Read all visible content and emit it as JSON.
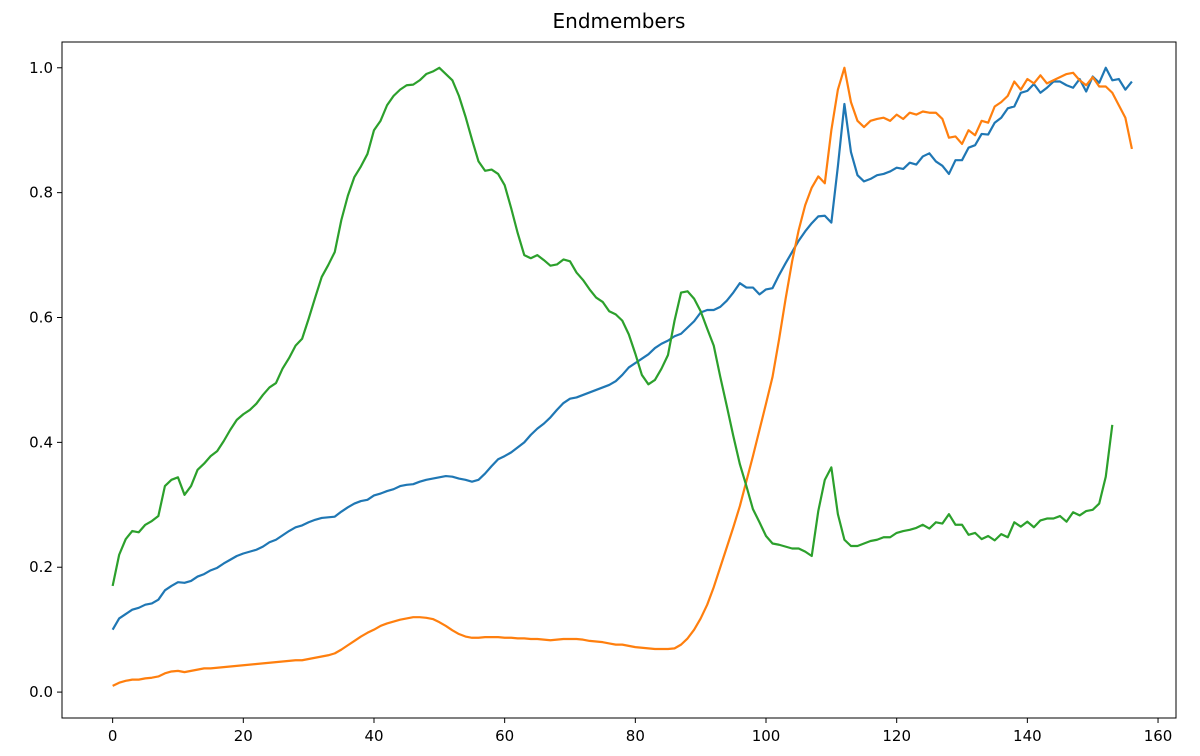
{
  "chart_data": {
    "type": "line",
    "title": "Endmembers",
    "xlabel": "",
    "ylabel": "",
    "xlim": [
      -7.75,
      162.75
    ],
    "ylim": [
      -0.0415,
      1.0413
    ],
    "xticks": [
      0,
      20,
      40,
      60,
      80,
      100,
      120,
      140,
      160
    ],
    "yticks": [
      0.0,
      0.2,
      0.4,
      0.6,
      0.8,
      1.0
    ],
    "xtick_labels": [
      "0",
      "20",
      "40",
      "60",
      "80",
      "100",
      "120",
      "140",
      "160"
    ],
    "ytick_labels": [
      "0.0",
      "0.2",
      "0.4",
      "0.6",
      "0.8",
      "1.0"
    ],
    "grid": false,
    "legend": "none",
    "x_start": 0,
    "x_step": 1,
    "series": [
      {
        "color": "#1f77b4",
        "values": [
          0.1,
          0.118,
          0.125,
          0.132,
          0.135,
          0.14,
          0.142,
          0.148,
          0.163,
          0.17,
          0.176,
          0.175,
          0.178,
          0.185,
          0.189,
          0.195,
          0.199,
          0.206,
          0.212,
          0.218,
          0.222,
          0.225,
          0.228,
          0.233,
          0.24,
          0.244,
          0.251,
          0.258,
          0.264,
          0.267,
          0.272,
          0.276,
          0.279,
          0.28,
          0.281,
          0.289,
          0.296,
          0.302,
          0.306,
          0.308,
          0.315,
          0.318,
          0.322,
          0.325,
          0.33,
          0.332,
          0.333,
          0.337,
          0.34,
          0.342,
          0.344,
          0.346,
          0.345,
          0.342,
          0.34,
          0.337,
          0.34,
          0.35,
          0.362,
          0.373,
          0.378,
          0.384,
          0.392,
          0.4,
          0.412,
          0.422,
          0.43,
          0.44,
          0.452,
          0.463,
          0.47,
          0.472,
          0.476,
          0.48,
          0.484,
          0.488,
          0.492,
          0.498,
          0.508,
          0.52,
          0.527,
          0.534,
          0.541,
          0.551,
          0.558,
          0.563,
          0.57,
          0.574,
          0.584,
          0.594,
          0.608,
          0.612,
          0.612,
          0.617,
          0.627,
          0.64,
          0.655,
          0.648,
          0.648,
          0.637,
          0.645,
          0.647,
          0.668,
          0.687,
          0.705,
          0.723,
          0.738,
          0.751,
          0.762,
          0.763,
          0.752,
          0.842,
          0.942,
          0.865,
          0.828,
          0.818,
          0.822,
          0.828,
          0.83,
          0.834,
          0.84,
          0.838,
          0.848,
          0.845,
          0.858,
          0.863,
          0.85,
          0.843,
          0.83,
          0.852,
          0.852,
          0.872,
          0.876,
          0.894,
          0.893,
          0.912,
          0.92,
          0.935,
          0.938,
          0.96,
          0.963,
          0.974,
          0.96,
          0.968,
          0.978,
          0.978,
          0.972,
          0.968,
          0.982,
          0.962,
          0.986,
          0.976,
          1.0,
          0.98,
          0.982,
          0.965,
          0.978
        ]
      },
      {
        "color": "#ff7f0e",
        "values": [
          0.01,
          0.015,
          0.018,
          0.02,
          0.02,
          0.022,
          0.023,
          0.025,
          0.03,
          0.033,
          0.034,
          0.032,
          0.034,
          0.036,
          0.038,
          0.038,
          0.039,
          0.04,
          0.041,
          0.042,
          0.043,
          0.044,
          0.045,
          0.046,
          0.047,
          0.048,
          0.049,
          0.05,
          0.051,
          0.051,
          0.053,
          0.055,
          0.057,
          0.059,
          0.062,
          0.068,
          0.075,
          0.082,
          0.089,
          0.095,
          0.1,
          0.106,
          0.11,
          0.113,
          0.116,
          0.118,
          0.12,
          0.12,
          0.119,
          0.117,
          0.112,
          0.106,
          0.099,
          0.093,
          0.089,
          0.087,
          0.087,
          0.088,
          0.088,
          0.088,
          0.087,
          0.087,
          0.086,
          0.086,
          0.085,
          0.085,
          0.084,
          0.083,
          0.084,
          0.085,
          0.085,
          0.085,
          0.084,
          0.082,
          0.081,
          0.08,
          0.078,
          0.076,
          0.076,
          0.074,
          0.072,
          0.071,
          0.07,
          0.069,
          0.069,
          0.069,
          0.07,
          0.076,
          0.086,
          0.1,
          0.118,
          0.14,
          0.168,
          0.2,
          0.232,
          0.264,
          0.298,
          0.338,
          0.378,
          0.42,
          0.462,
          0.505,
          0.565,
          0.63,
          0.69,
          0.74,
          0.78,
          0.808,
          0.826,
          0.815,
          0.9,
          0.965,
          1.0,
          0.945,
          0.915,
          0.905,
          0.915,
          0.918,
          0.92,
          0.915,
          0.925,
          0.918,
          0.928,
          0.925,
          0.93,
          0.928,
          0.928,
          0.918,
          0.888,
          0.89,
          0.878,
          0.9,
          0.892,
          0.915,
          0.912,
          0.938,
          0.945,
          0.955,
          0.978,
          0.965,
          0.982,
          0.975,
          0.988,
          0.975,
          0.98,
          0.985,
          0.99,
          0.992,
          0.98,
          0.972,
          0.985,
          0.97,
          0.97,
          0.96,
          0.94,
          0.92,
          0.87
        ]
      },
      {
        "color": "#2ca02c",
        "values": [
          0.17,
          0.22,
          0.245,
          0.258,
          0.256,
          0.268,
          0.274,
          0.282,
          0.33,
          0.34,
          0.344,
          0.316,
          0.33,
          0.356,
          0.366,
          0.378,
          0.386,
          0.402,
          0.42,
          0.436,
          0.445,
          0.452,
          0.462,
          0.476,
          0.488,
          0.495,
          0.518,
          0.535,
          0.555,
          0.566,
          0.598,
          0.632,
          0.665,
          0.684,
          0.705,
          0.756,
          0.795,
          0.825,
          0.842,
          0.862,
          0.9,
          0.915,
          0.94,
          0.955,
          0.965,
          0.972,
          0.973,
          0.98,
          0.99,
          0.994,
          1.0,
          0.99,
          0.98,
          0.955,
          0.922,
          0.885,
          0.85,
          0.835,
          0.837,
          0.83,
          0.812,
          0.775,
          0.735,
          0.7,
          0.695,
          0.7,
          0.692,
          0.683,
          0.685,
          0.693,
          0.69,
          0.672,
          0.66,
          0.645,
          0.632,
          0.625,
          0.61,
          0.605,
          0.595,
          0.573,
          0.542,
          0.508,
          0.493,
          0.5,
          0.518,
          0.54,
          0.595,
          0.64,
          0.642,
          0.63,
          0.61,
          0.582,
          0.555,
          0.505,
          0.458,
          0.41,
          0.365,
          0.33,
          0.293,
          0.272,
          0.25,
          0.238,
          0.236,
          0.233,
          0.23,
          0.23,
          0.225,
          0.218,
          0.29,
          0.34,
          0.36,
          0.285,
          0.244,
          0.234,
          0.234,
          0.238,
          0.242,
          0.244,
          0.248,
          0.248,
          0.255,
          0.258,
          0.26,
          0.263,
          0.268,
          0.262,
          0.272,
          0.27,
          0.285,
          0.268,
          0.268,
          0.252,
          0.255,
          0.245,
          0.25,
          0.243,
          0.253,
          0.248,
          0.272,
          0.265,
          0.273,
          0.264,
          0.275,
          0.278,
          0.278,
          0.282,
          0.273,
          0.288,
          0.283,
          0.29,
          0.292,
          0.302,
          0.345,
          0.428
        ]
      }
    ]
  }
}
